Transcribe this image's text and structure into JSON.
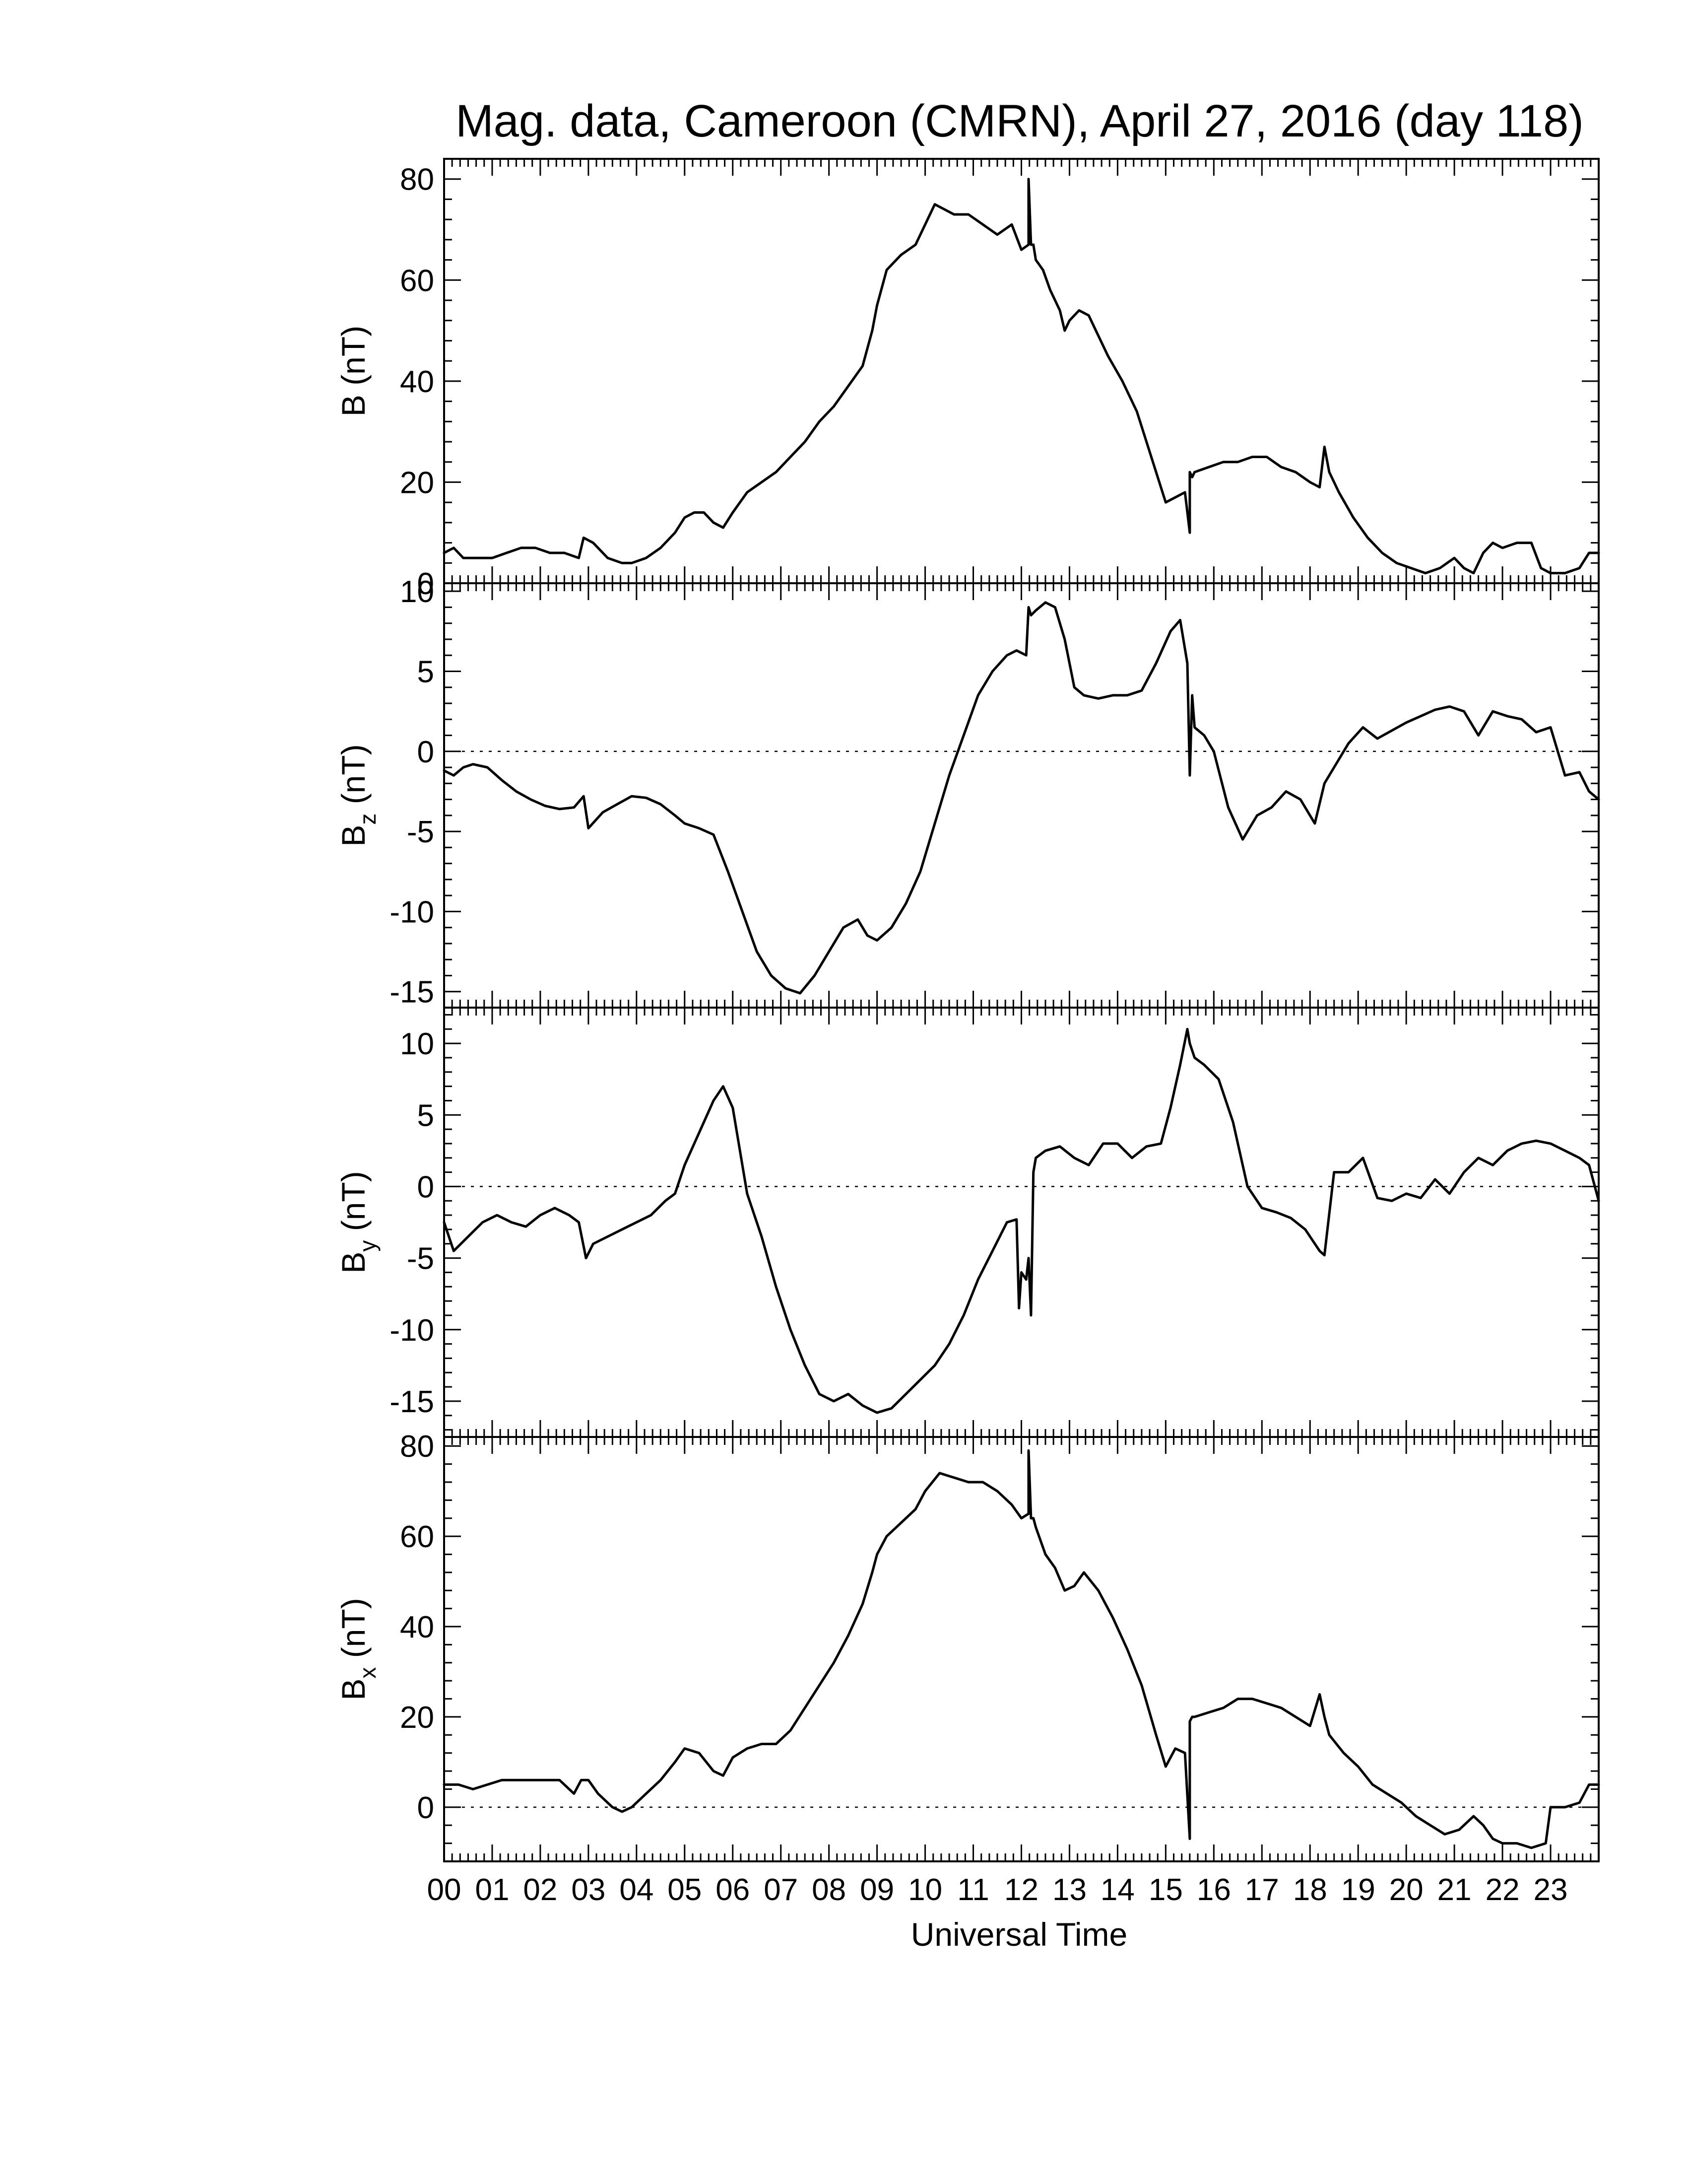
{
  "chart_data": {
    "type": "line",
    "title": "Mag. data, Cameroon (CMRN), April 27, 2016 (day 118)",
    "xlabel": "Universal Time",
    "x_unit": "hours UT",
    "xlim": [
      0,
      24
    ],
    "x_ticks": [
      {
        "value": 0,
        "label": "00"
      },
      {
        "value": 1,
        "label": "01"
      },
      {
        "value": 2,
        "label": "02"
      },
      {
        "value": 3,
        "label": "03"
      },
      {
        "value": 4,
        "label": "04"
      },
      {
        "value": 5,
        "label": "05"
      },
      {
        "value": 6,
        "label": "06"
      },
      {
        "value": 7,
        "label": "07"
      },
      {
        "value": 8,
        "label": "08"
      },
      {
        "value": 9,
        "label": "09"
      },
      {
        "value": 10,
        "label": "10"
      },
      {
        "value": 11,
        "label": "11"
      },
      {
        "value": 12,
        "label": "12"
      },
      {
        "value": 13,
        "label": "13"
      },
      {
        "value": 14,
        "label": "14"
      },
      {
        "value": 15,
        "label": "15"
      },
      {
        "value": 16,
        "label": "16"
      },
      {
        "value": 17,
        "label": "17"
      },
      {
        "value": 18,
        "label": "18"
      },
      {
        "value": 19,
        "label": "19"
      },
      {
        "value": 20,
        "label": "20"
      },
      {
        "value": 21,
        "label": "21"
      },
      {
        "value": 22,
        "label": "22"
      },
      {
        "value": 23,
        "label": "23"
      }
    ],
    "grid": false,
    "panels": [
      {
        "id": "B",
        "ylabel": {
          "main": "B",
          "sub": "",
          "unit": "(nT)"
        },
        "ylim": [
          0,
          84
        ],
        "yticks": [
          0,
          20,
          40,
          60,
          80
        ],
        "zero_line": false,
        "series": {
          "x": [
            0,
            0.2,
            0.4,
            0.7,
            1,
            1.3,
            1.6,
            1.9,
            2.2,
            2.5,
            2.8,
            2.9,
            3.1,
            3.4,
            3.7,
            3.9,
            4.2,
            4.5,
            4.8,
            5.0,
            5.2,
            5.4,
            5.6,
            5.8,
            6.0,
            6.3,
            6.6,
            6.9,
            7.2,
            7.5,
            7.8,
            8.1,
            8.4,
            8.7,
            8.9,
            9.0,
            9.2,
            9.5,
            9.8,
            10.0,
            10.2,
            10.4,
            10.6,
            10.9,
            11.2,
            11.5,
            11.8,
            12.0,
            12.15,
            12.15,
            12.2,
            12.25,
            12.3,
            12.45,
            12.6,
            12.8,
            12.9,
            13.0,
            13.2,
            13.4,
            13.6,
            13.8,
            14.1,
            14.4,
            14.7,
            15.0,
            15.2,
            15.4,
            15.5,
            15.5,
            15.55,
            15.6,
            15.9,
            16.2,
            16.5,
            16.8,
            17.1,
            17.4,
            17.7,
            18.0,
            18.2,
            18.3,
            18.4,
            18.6,
            18.9,
            19.2,
            19.5,
            19.8,
            20.1,
            20.4,
            20.7,
            21.0,
            21.2,
            21.4,
            21.6,
            21.8,
            22.0,
            22.3,
            22.6,
            22.8,
            23.0,
            23.3,
            23.6,
            23.8,
            24.0
          ],
          "values": [
            6,
            7,
            5,
            5,
            5,
            6,
            7,
            7,
            6,
            6,
            5,
            9,
            8,
            5,
            4,
            4,
            5,
            7,
            10,
            13,
            14,
            14,
            12,
            11,
            14,
            18,
            20,
            22,
            25,
            28,
            32,
            35,
            39,
            43,
            50,
            55,
            62,
            65,
            67,
            71,
            75,
            74,
            73,
            73,
            71,
            69,
            71,
            66,
            67,
            80,
            67,
            67,
            64,
            62,
            58,
            54,
            50,
            52,
            54,
            53,
            49,
            45,
            40,
            34,
            25,
            16,
            17,
            18,
            10,
            22,
            21,
            22,
            23,
            24,
            24,
            25,
            25,
            23,
            22,
            20,
            19,
            27,
            22,
            18,
            13,
            9,
            6,
            4,
            3,
            2,
            3,
            5,
            3,
            2,
            6,
            8,
            7,
            8,
            8,
            3,
            2,
            2,
            3,
            6,
            6
          ]
        }
      },
      {
        "id": "Bz",
        "ylabel": {
          "main": "B",
          "sub": "z",
          "unit": "(nT)"
        },
        "ylim": [
          -16,
          10.5
        ],
        "yticks": [
          -15,
          -10,
          -5,
          0,
          5,
          10
        ],
        "zero_line": true,
        "series": {
          "x": [
            0,
            0.2,
            0.4,
            0.6,
            0.9,
            1.2,
            1.5,
            1.8,
            2.1,
            2.4,
            2.7,
            2.9,
            3.0,
            3.3,
            3.6,
            3.9,
            4.2,
            4.5,
            4.8,
            5.0,
            5.3,
            5.6,
            5.9,
            6.2,
            6.5,
            6.8,
            7.1,
            7.4,
            7.7,
            8.0,
            8.3,
            8.6,
            8.8,
            9.0,
            9.3,
            9.6,
            9.9,
            10.2,
            10.5,
            10.8,
            11.1,
            11.4,
            11.7,
            11.9,
            12.1,
            12.15,
            12.2,
            12.3,
            12.5,
            12.7,
            12.9,
            13.1,
            13.3,
            13.6,
            13.9,
            14.2,
            14.5,
            14.8,
            15.1,
            15.3,
            15.45,
            15.5,
            15.55,
            15.6,
            15.8,
            16.0,
            16.3,
            16.6,
            16.9,
            17.2,
            17.5,
            17.8,
            18.1,
            18.3,
            18.5,
            18.8,
            19.1,
            19.4,
            19.7,
            20.0,
            20.3,
            20.6,
            20.9,
            21.2,
            21.5,
            21.8,
            22.1,
            22.4,
            22.7,
            23.0,
            23.3,
            23.6,
            23.8,
            24.0
          ],
          "values": [
            -1.2,
            -1.5,
            -1.0,
            -0.8,
            -1.0,
            -1.8,
            -2.5,
            -3.0,
            -3.4,
            -3.6,
            -3.5,
            -2.8,
            -4.8,
            -3.8,
            -3.3,
            -2.8,
            -2.9,
            -3.3,
            -4.0,
            -4.5,
            -4.8,
            -5.2,
            -7.5,
            -10.0,
            -12.5,
            -14.0,
            -14.8,
            -15.1,
            -14.0,
            -12.5,
            -11.0,
            -10.5,
            -11.5,
            -11.8,
            -11.0,
            -9.5,
            -7.5,
            -4.5,
            -1.5,
            1.0,
            3.5,
            5.0,
            6.0,
            6.3,
            6.0,
            9.0,
            8.5,
            8.8,
            9.3,
            9.0,
            7.0,
            4.0,
            3.5,
            3.3,
            3.5,
            3.5,
            3.8,
            5.5,
            7.5,
            8.2,
            5.5,
            -1.5,
            3.5,
            1.5,
            1.0,
            0.0,
            -3.5,
            -5.5,
            -4.0,
            -3.5,
            -2.5,
            -3.0,
            -4.5,
            -2.0,
            -1.0,
            0.5,
            1.5,
            0.8,
            1.3,
            1.8,
            2.2,
            2.6,
            2.8,
            2.5,
            1.0,
            2.5,
            2.2,
            2.0,
            1.2,
            1.5,
            -1.5,
            -1.3,
            -2.5,
            -3.0
          ]
        }
      },
      {
        "id": "By",
        "ylabel": {
          "main": "B",
          "sub": "y",
          "unit": "(nT)"
        },
        "ylim": [
          -17.5,
          12.5
        ],
        "yticks": [
          -15,
          -10,
          -5,
          0,
          5,
          10
        ],
        "zero_line": true,
        "series": {
          "x": [
            0,
            0.2,
            0.5,
            0.8,
            1.1,
            1.4,
            1.7,
            2.0,
            2.3,
            2.6,
            2.8,
            2.95,
            3.1,
            3.4,
            3.7,
            4.0,
            4.3,
            4.6,
            4.8,
            5.0,
            5.2,
            5.4,
            5.6,
            5.8,
            6.0,
            6.3,
            6.6,
            6.9,
            7.2,
            7.5,
            7.8,
            8.1,
            8.4,
            8.7,
            9.0,
            9.3,
            9.6,
            9.9,
            10.2,
            10.5,
            10.8,
            11.1,
            11.4,
            11.7,
            11.9,
            11.95,
            12.0,
            12.1,
            12.15,
            12.2,
            12.25,
            12.3,
            12.5,
            12.8,
            13.1,
            13.4,
            13.7,
            14.0,
            14.3,
            14.6,
            14.9,
            15.1,
            15.3,
            15.45,
            15.5,
            15.6,
            15.8,
            16.1,
            16.4,
            16.7,
            17.0,
            17.3,
            17.6,
            17.9,
            18.2,
            18.3,
            18.5,
            18.8,
            19.1,
            19.4,
            19.7,
            20.0,
            20.3,
            20.6,
            20.9,
            21.2,
            21.5,
            21.8,
            22.1,
            22.4,
            22.7,
            23.0,
            23.3,
            23.6,
            23.8,
            24.0
          ],
          "values": [
            -2.5,
            -4.5,
            -3.5,
            -2.5,
            -2.0,
            -2.5,
            -2.8,
            -2.0,
            -1.5,
            -2.0,
            -2.5,
            -5.0,
            -4.0,
            -3.5,
            -3.0,
            -2.5,
            -2.0,
            -1.0,
            -0.5,
            1.5,
            3.0,
            4.5,
            6.0,
            7.0,
            5.5,
            -0.5,
            -3.5,
            -7.0,
            -10.0,
            -12.5,
            -14.5,
            -15.0,
            -14.5,
            -15.3,
            -15.8,
            -15.5,
            -14.5,
            -13.5,
            -12.5,
            -11.0,
            -9.0,
            -6.5,
            -4.5,
            -2.5,
            -2.3,
            -8.5,
            -6.0,
            -6.5,
            -5.0,
            -9.0,
            1.0,
            2.0,
            2.5,
            2.8,
            2.0,
            1.5,
            3.0,
            3.0,
            2.0,
            2.8,
            3.0,
            5.5,
            8.5,
            11.0,
            10.0,
            9.0,
            8.5,
            7.5,
            4.5,
            0.0,
            -1.5,
            -1.8,
            -2.2,
            -3.0,
            -4.5,
            -4.8,
            1.0,
            1.0,
            2.0,
            -0.8,
            -1.0,
            -0.5,
            -0.8,
            0.5,
            -0.5,
            1.0,
            2.0,
            1.5,
            2.5,
            3.0,
            3.2,
            3.0,
            2.5,
            2.0,
            1.5,
            -1.0
          ]
        }
      },
      {
        "id": "Bx",
        "ylabel": {
          "main": "B",
          "sub": "x",
          "unit": "(nT)"
        },
        "ylim": [
          -12,
          82
        ],
        "yticks": [
          0,
          20,
          40,
          60,
          80
        ],
        "zero_line": true,
        "series": {
          "x": [
            0,
            0.3,
            0.6,
            0.9,
            1.2,
            1.5,
            1.8,
            2.1,
            2.4,
            2.7,
            2.85,
            3.0,
            3.2,
            3.5,
            3.7,
            3.9,
            4.2,
            4.5,
            4.8,
            5.0,
            5.3,
            5.6,
            5.8,
            6.0,
            6.3,
            6.6,
            6.9,
            7.2,
            7.5,
            7.8,
            8.1,
            8.4,
            8.7,
            8.9,
            9.0,
            9.2,
            9.5,
            9.8,
            10.0,
            10.3,
            10.6,
            10.9,
            11.2,
            11.5,
            11.8,
            12.0,
            12.15,
            12.15,
            12.2,
            12.25,
            12.3,
            12.5,
            12.7,
            12.9,
            13.1,
            13.3,
            13.6,
            13.9,
            14.2,
            14.5,
            14.8,
            15.0,
            15.2,
            15.4,
            15.5,
            15.5,
            15.55,
            15.6,
            15.9,
            16.2,
            16.5,
            16.8,
            17.1,
            17.4,
            17.7,
            18.0,
            18.2,
            18.3,
            18.4,
            18.7,
            19.0,
            19.3,
            19.6,
            19.9,
            20.2,
            20.5,
            20.8,
            21.1,
            21.4,
            21.6,
            21.8,
            22.0,
            22.3,
            22.6,
            22.9,
            23.0,
            23.3,
            23.6,
            23.8,
            24.0
          ],
          "values": [
            5,
            5,
            4,
            5,
            6,
            6,
            6,
            6,
            6,
            3,
            6,
            6,
            3,
            0,
            -1,
            0,
            3,
            6,
            10,
            13,
            12,
            8,
            7,
            11,
            13,
            14,
            14,
            17,
            22,
            27,
            32,
            38,
            45,
            52,
            56,
            60,
            63,
            66,
            70,
            74,
            73,
            72,
            72,
            70,
            67,
            64,
            65,
            79,
            64,
            64,
            62,
            56,
            53,
            48,
            49,
            52,
            48,
            42,
            35,
            27,
            16,
            9,
            13,
            12,
            -7,
            19,
            20,
            20,
            21,
            22,
            24,
            24,
            23,
            22,
            20,
            18,
            25,
            20,
            16,
            12,
            9,
            5,
            3,
            1,
            -2,
            -4,
            -6,
            -5,
            -2,
            -4,
            -7,
            -8,
            -8,
            -9,
            -8,
            0,
            0,
            1,
            5,
            5
          ]
        }
      }
    ]
  }
}
